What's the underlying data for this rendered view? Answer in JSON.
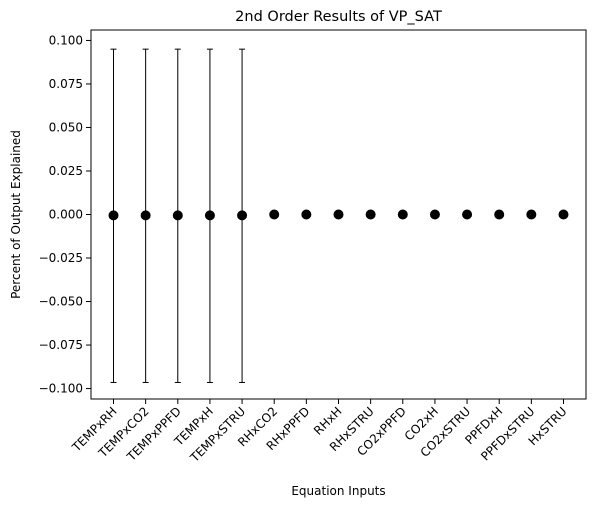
{
  "chart_data": {
    "type": "scatter",
    "title": "2nd Order Results of VP_SAT",
    "xlabel": "Equation Inputs",
    "ylabel": "Percent of Output Explained",
    "ylim": [
      -0.106,
      0.106
    ],
    "yticks": [
      -0.1,
      -0.075,
      -0.05,
      -0.025,
      0.0,
      0.025,
      0.05,
      0.075,
      0.1
    ],
    "ytick_labels": [
      "−0.100",
      "−0.075",
      "−0.050",
      "−0.025",
      "0.000",
      "0.025",
      "0.050",
      "0.075",
      "0.100"
    ],
    "grid": false,
    "categories": [
      "TEMPxRH",
      "TEMPxCO2",
      "TEMPxPPFD",
      "TEMPxH",
      "TEMPxSTRU",
      "RHxCO2",
      "RHxPPFD",
      "RHxH",
      "RHxSTRU",
      "CO2xPPFD",
      "CO2xH",
      "CO2xSTRU",
      "PPFDxH",
      "PPFDxSTRU",
      "HxSTRU"
    ],
    "values": [
      -0.0005,
      -0.0005,
      -0.0005,
      -0.0005,
      -0.0005,
      0.0,
      0.0,
      0.0,
      0.0,
      0.0,
      0.0,
      0.0,
      0.0,
      0.0,
      0.0
    ],
    "error_low": [
      -0.0965,
      -0.0965,
      -0.0965,
      -0.0965,
      -0.0965,
      0.0,
      0.0,
      0.0,
      0.0,
      0.0,
      0.0,
      0.0,
      0.0,
      0.0,
      0.0
    ],
    "error_high": [
      0.095,
      0.095,
      0.095,
      0.095,
      0.095,
      0.0,
      0.0,
      0.0,
      0.0,
      0.0,
      0.0,
      0.0,
      0.0,
      0.0,
      0.0
    ],
    "marker_color": "#000000",
    "errorbar_color": "#000000"
  }
}
